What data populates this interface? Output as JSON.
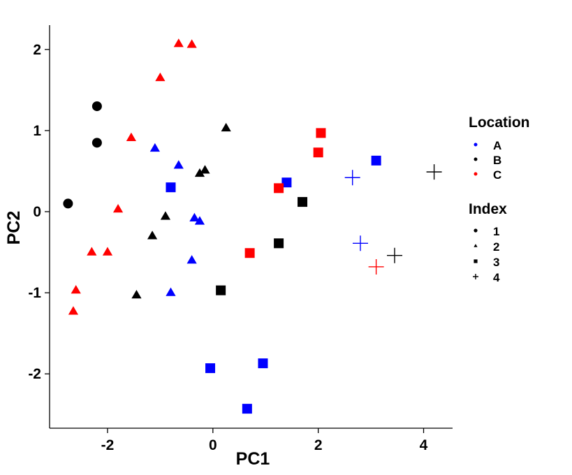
{
  "chart_data": {
    "type": "scatter",
    "xlabel": "PC1",
    "ylabel": "PC2",
    "xlim": [
      -3.1,
      4.55
    ],
    "ylim": [
      -2.67,
      2.3
    ],
    "xticks": [
      -2,
      0,
      2,
      4
    ],
    "yticks": [
      -2,
      -1,
      0,
      1,
      2
    ],
    "grid": false,
    "legend_position": "right",
    "colors": {
      "A": "#0000ff",
      "B": "#000000",
      "C": "#ff0000"
    },
    "shapes": {
      "1": "circle",
      "2": "triangle",
      "3": "square",
      "4": "plus"
    },
    "legend": {
      "color_title": "Location",
      "color_items": [
        "A",
        "B",
        "C"
      ],
      "shape_title": "Index",
      "shape_items": [
        "1",
        "2",
        "3",
        "4"
      ]
    },
    "points": [
      {
        "x": -2.2,
        "y": 1.3,
        "location": "B",
        "index": "1"
      },
      {
        "x": -2.2,
        "y": 0.85,
        "location": "B",
        "index": "1"
      },
      {
        "x": -2.75,
        "y": 0.1,
        "location": "B",
        "index": "1"
      },
      {
        "x": -0.65,
        "y": 2.07,
        "location": "C",
        "index": "2"
      },
      {
        "x": -0.4,
        "y": 2.06,
        "location": "C",
        "index": "2"
      },
      {
        "x": -1.0,
        "y": 1.65,
        "location": "C",
        "index": "2"
      },
      {
        "x": -1.55,
        "y": 0.91,
        "location": "C",
        "index": "2"
      },
      {
        "x": -1.8,
        "y": 0.03,
        "location": "C",
        "index": "2"
      },
      {
        "x": -2.3,
        "y": -0.5,
        "location": "C",
        "index": "2"
      },
      {
        "x": -2.0,
        "y": -0.5,
        "location": "C",
        "index": "2"
      },
      {
        "x": -2.6,
        "y": -0.97,
        "location": "C",
        "index": "2"
      },
      {
        "x": -2.65,
        "y": -1.23,
        "location": "C",
        "index": "2"
      },
      {
        "x": -1.1,
        "y": 0.78,
        "location": "A",
        "index": "2"
      },
      {
        "x": -0.65,
        "y": 0.57,
        "location": "A",
        "index": "2"
      },
      {
        "x": -0.35,
        "y": -0.08,
        "location": "A",
        "index": "2"
      },
      {
        "x": -0.25,
        "y": -0.12,
        "location": "A",
        "index": "2"
      },
      {
        "x": -0.4,
        "y": -0.6,
        "location": "A",
        "index": "2"
      },
      {
        "x": -0.8,
        "y": -1.0,
        "location": "A",
        "index": "2"
      },
      {
        "x": 0.25,
        "y": 1.03,
        "location": "B",
        "index": "2"
      },
      {
        "x": -0.15,
        "y": 0.51,
        "location": "B",
        "index": "2"
      },
      {
        "x": -0.25,
        "y": 0.47,
        "location": "B",
        "index": "2"
      },
      {
        "x": -0.9,
        "y": -0.06,
        "location": "B",
        "index": "2"
      },
      {
        "x": -1.15,
        "y": -0.3,
        "location": "B",
        "index": "2"
      },
      {
        "x": -1.45,
        "y": -1.03,
        "location": "B",
        "index": "2"
      },
      {
        "x": -0.8,
        "y": 0.3,
        "location": "A",
        "index": "3"
      },
      {
        "x": 1.4,
        "y": 0.36,
        "location": "A",
        "index": "3"
      },
      {
        "x": 3.1,
        "y": 0.63,
        "location": "A",
        "index": "3"
      },
      {
        "x": -0.05,
        "y": -1.93,
        "location": "A",
        "index": "3"
      },
      {
        "x": 0.95,
        "y": -1.87,
        "location": "A",
        "index": "3"
      },
      {
        "x": 0.65,
        "y": -2.43,
        "location": "A",
        "index": "3"
      },
      {
        "x": 1.7,
        "y": 0.12,
        "location": "B",
        "index": "3"
      },
      {
        "x": 1.25,
        "y": -0.39,
        "location": "B",
        "index": "3"
      },
      {
        "x": 0.15,
        "y": -0.97,
        "location": "B",
        "index": "3"
      },
      {
        "x": 2.05,
        "y": 0.97,
        "location": "C",
        "index": "3"
      },
      {
        "x": 2.0,
        "y": 0.73,
        "location": "C",
        "index": "3"
      },
      {
        "x": 1.25,
        "y": 0.29,
        "location": "C",
        "index": "3"
      },
      {
        "x": 0.7,
        "y": -0.51,
        "location": "C",
        "index": "3"
      },
      {
        "x": 2.65,
        "y": 0.42,
        "location": "A",
        "index": "4"
      },
      {
        "x": 2.8,
        "y": -0.39,
        "location": "A",
        "index": "4"
      },
      {
        "x": 4.2,
        "y": 0.49,
        "location": "B",
        "index": "4"
      },
      {
        "x": 3.45,
        "y": -0.54,
        "location": "B",
        "index": "4"
      },
      {
        "x": 3.1,
        "y": -0.68,
        "location": "C",
        "index": "4"
      }
    ]
  }
}
